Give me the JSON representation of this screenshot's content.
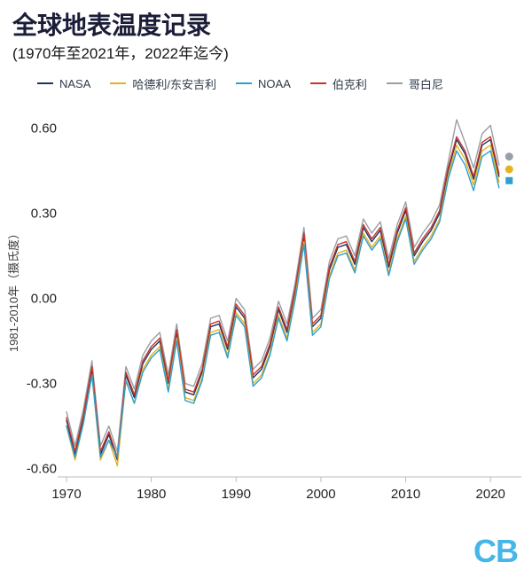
{
  "header": {
    "title": "全球地表温度记录",
    "subtitle": "(1970年至2021年，2022年迄今)"
  },
  "footer": {
    "logo_text": "CB"
  },
  "colors": {
    "nasa": "#1b3561",
    "hadley": "#e6b31e",
    "noaa": "#2d9fd0",
    "berkeley": "#c8342a",
    "copernicus": "#98a0a6",
    "axis": "#b9bdc4",
    "logo_blue": "#45b6e8"
  },
  "chart_data": {
    "type": "line",
    "title": "全球地表温度记录",
    "subtitle": "(1970年至2021年，2022年迄今)",
    "ylabel": "1981-2010年（摄氏度）",
    "xlabel": "",
    "x_range": [
      1970,
      2021
    ],
    "xticks": [
      1970,
      1980,
      1990,
      2000,
      2010,
      2020
    ],
    "yticks": [
      0.6,
      0.3,
      0.0,
      -0.3,
      -0.6
    ],
    "ytick_labels": [
      "0.60",
      "0.30",
      "0.00",
      "-0.30",
      "-0.60"
    ],
    "ylim": [
      -0.62,
      0.68
    ],
    "grid": false,
    "legend_position": "top",
    "series": [
      {
        "name": "哥白尼",
        "color": "#98a0a6",
        "values": [
          -0.4,
          -0.52,
          -0.39,
          -0.22,
          -0.52,
          -0.45,
          -0.54,
          -0.24,
          -0.32,
          -0.2,
          -0.15,
          -0.12,
          -0.27,
          -0.09,
          -0.3,
          -0.31,
          -0.23,
          -0.07,
          -0.06,
          -0.15,
          0.0,
          -0.04,
          -0.25,
          -0.22,
          -0.14,
          -0.01,
          -0.09,
          0.06,
          0.25,
          -0.07,
          -0.04,
          0.13,
          0.21,
          0.22,
          0.15,
          0.28,
          0.23,
          0.27,
          0.14,
          0.26,
          0.34,
          0.18,
          0.23,
          0.27,
          0.33,
          0.48,
          0.63,
          0.55,
          0.46,
          0.58,
          0.61,
          0.47
        ]
      },
      {
        "name": "NASA",
        "color": "#1b3561",
        "values": [
          -0.43,
          -0.55,
          -0.42,
          -0.25,
          -0.55,
          -0.48,
          -0.57,
          -0.27,
          -0.35,
          -0.23,
          -0.18,
          -0.15,
          -0.3,
          -0.12,
          -0.33,
          -0.34,
          -0.26,
          -0.1,
          -0.09,
          -0.18,
          -0.03,
          -0.07,
          -0.28,
          -0.25,
          -0.17,
          -0.04,
          -0.12,
          0.03,
          0.22,
          -0.1,
          -0.07,
          0.1,
          0.18,
          0.19,
          0.12,
          0.25,
          0.2,
          0.24,
          0.11,
          0.23,
          0.31,
          0.15,
          0.2,
          0.24,
          0.3,
          0.45,
          0.56,
          0.51,
          0.42,
          0.54,
          0.56,
          0.43
        ]
      },
      {
        "name": "伯克利",
        "color": "#c8342a",
        "values": [
          -0.42,
          -0.54,
          -0.41,
          -0.24,
          -0.54,
          -0.47,
          -0.56,
          -0.26,
          -0.34,
          -0.22,
          -0.17,
          -0.14,
          -0.29,
          -0.11,
          -0.32,
          -0.33,
          -0.25,
          -0.09,
          -0.08,
          -0.17,
          -0.02,
          -0.06,
          -0.27,
          -0.24,
          -0.16,
          -0.03,
          -0.11,
          0.04,
          0.23,
          -0.09,
          -0.06,
          0.11,
          0.19,
          0.2,
          0.13,
          0.26,
          0.21,
          0.25,
          0.12,
          0.24,
          0.32,
          0.16,
          0.21,
          0.25,
          0.31,
          0.46,
          0.57,
          0.52,
          0.43,
          0.55,
          0.57,
          0.44
        ]
      },
      {
        "name": "哈德利/东安吉利",
        "color": "#e6b31e",
        "values": [
          -0.45,
          -0.57,
          -0.44,
          -0.27,
          -0.57,
          -0.5,
          -0.59,
          -0.29,
          -0.37,
          -0.25,
          -0.2,
          -0.17,
          -0.32,
          -0.14,
          -0.35,
          -0.36,
          -0.28,
          -0.12,
          -0.11,
          -0.2,
          -0.05,
          -0.09,
          -0.3,
          -0.27,
          -0.19,
          -0.06,
          -0.14,
          0.01,
          0.2,
          -0.12,
          -0.09,
          0.08,
          0.16,
          0.17,
          0.1,
          0.23,
          0.18,
          0.22,
          0.09,
          0.21,
          0.29,
          0.13,
          0.18,
          0.22,
          0.28,
          0.43,
          0.54,
          0.49,
          0.4,
          0.52,
          0.54,
          0.41
        ]
      },
      {
        "name": "NOAA",
        "color": "#2d9fd0",
        "values": [
          -0.45,
          -0.56,
          -0.44,
          -0.27,
          -0.56,
          -0.5,
          -0.56,
          -0.29,
          -0.37,
          -0.26,
          -0.21,
          -0.18,
          -0.33,
          -0.15,
          -0.36,
          -0.37,
          -0.29,
          -0.13,
          -0.12,
          -0.21,
          -0.06,
          -0.1,
          -0.31,
          -0.28,
          -0.2,
          -0.07,
          -0.15,
          0.0,
          0.19,
          -0.13,
          -0.1,
          0.07,
          0.15,
          0.16,
          0.09,
          0.22,
          0.17,
          0.21,
          0.08,
          0.2,
          0.28,
          0.12,
          0.17,
          0.21,
          0.27,
          0.42,
          0.52,
          0.47,
          0.38,
          0.5,
          0.52,
          0.39
        ]
      }
    ],
    "legend_order": [
      "NASA",
      "哈德利/东安吉利",
      "NOAA",
      "伯克利",
      "哥白尼"
    ],
    "ytd_2022": [
      {
        "series": "哥白尼",
        "shape": "circle",
        "color": "#98a0a6",
        "value": 0.5
      },
      {
        "series": "哈德利/东安吉利",
        "shape": "circle",
        "color": "#e6b31e",
        "value": 0.455
      },
      {
        "series": "NOAA",
        "shape": "square",
        "color": "#2d9fd0",
        "value": 0.415
      }
    ]
  }
}
